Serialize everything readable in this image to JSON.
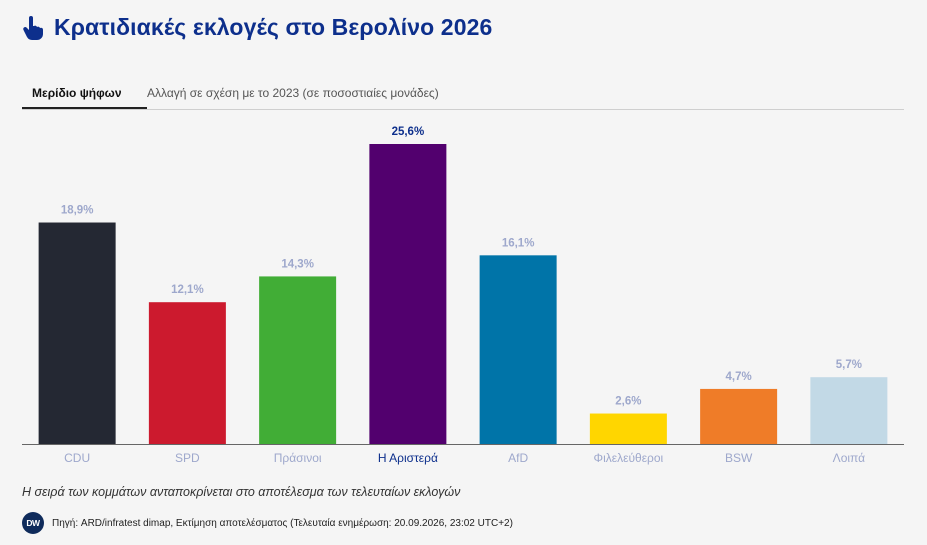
{
  "header": {
    "icon": "hand-pointer-icon",
    "title": "Κρατιδιακές εκλογές στο Βερολίνο 2026"
  },
  "tabs": [
    {
      "label": "Μερίδιο ψήφων",
      "active": true
    },
    {
      "label": "Αλλαγή σε σχέση με το 2023 (σε ποσοστιαίες μονάδες)",
      "active": false
    }
  ],
  "chart_data": {
    "type": "bar",
    "categories": [
      "CDU",
      "SPD",
      "Πράσινοι",
      "Η Αριστερά",
      "AfD",
      "Φιλελεύθεροι",
      "BSW",
      "Λοιπά"
    ],
    "values": [
      18.9,
      12.1,
      14.3,
      25.6,
      16.1,
      2.6,
      4.7,
      5.7
    ],
    "value_labels": [
      "18,9%",
      "12,1%",
      "14,3%",
      "25,6%",
      "16,1%",
      "2,6%",
      "4,7%",
      "5,7%"
    ],
    "colors": [
      "#242833",
      "#cc1a2e",
      "#41ad36",
      "#52006e",
      "#0074a8",
      "#ffd600",
      "#ef7c28",
      "#c2d9e6"
    ],
    "highlight_index": 3,
    "highlight_color": "#0d2f8c",
    "label_color": "#9ea8cc",
    "ylim": [
      0,
      28
    ],
    "grid": false
  },
  "footer": {
    "note": "Η σειρά των κομμάτων ανταποκρίνεται στο αποτέλεσμα των τελευταίων εκλογών",
    "logo_text": "DW",
    "source": "Πηγή: ARD/infratest dimap, Εκτίμηση αποτελέσματος (Τελευταία ενημέρωση: 20.09.2026, 23:02 UTC+2)"
  }
}
